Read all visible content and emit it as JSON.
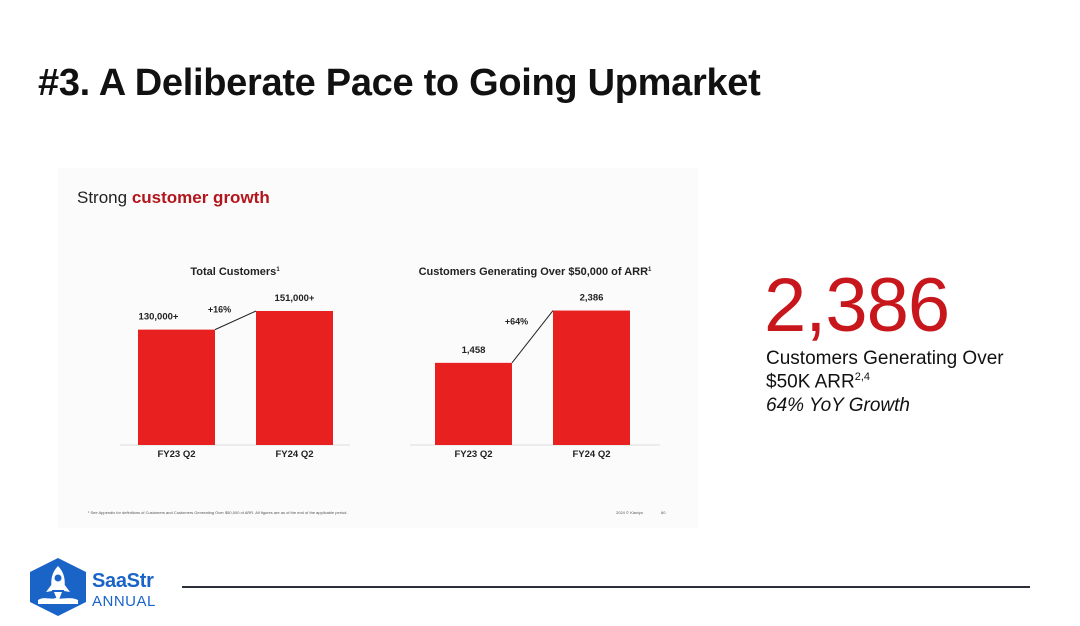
{
  "slide": {
    "title": "#3.  A Deliberate Pace to Going Upmarket",
    "subtitle_prefix": "Strong ",
    "subtitle_accent": "customer growth",
    "subtitle_accent_color": "#b3151c"
  },
  "chart_data": [
    {
      "type": "bar",
      "title": "Total Customers",
      "title_footnote": "1",
      "categories": [
        "FY23 Q2",
        "FY24 Q2"
      ],
      "values": [
        130000,
        151000
      ],
      "data_labels": [
        "130,000+",
        "151,000+"
      ],
      "growth_label": "+16%",
      "bar_color": "#e8201f",
      "ylim": [
        0,
        160000
      ]
    },
    {
      "type": "bar",
      "title": "Customers Generating Over $50,000 of ARR",
      "title_footnote": "1",
      "categories": [
        "FY23 Q2",
        "FY24 Q2"
      ],
      "values": [
        1458,
        2386
      ],
      "data_labels": [
        "1,458",
        "2,386"
      ],
      "growth_label": "+64%",
      "bar_color": "#e8201f",
      "ylim": [
        0,
        2520
      ]
    }
  ],
  "footnote": {
    "left_marker": "",
    "text": "¹ See Appendix for definitions of Customers and Customers Generating Over $50,000 of ARR. All figures are as of the end of the applicable period.",
    "copyright": "2024 © Klaviyo",
    "page": "60"
  },
  "kpi": {
    "value": "2,386",
    "value_color": "#c8161d",
    "line1": "Customers Generating Over",
    "line2": "$50K ARR",
    "line2_sup": "2,4",
    "line3": "64% YoY Growth"
  },
  "brand": {
    "name_line1": "SaaStr",
    "name_line2": "ANNUAL",
    "logo_icon": "rocket-icon",
    "color": "#1a64c8"
  }
}
